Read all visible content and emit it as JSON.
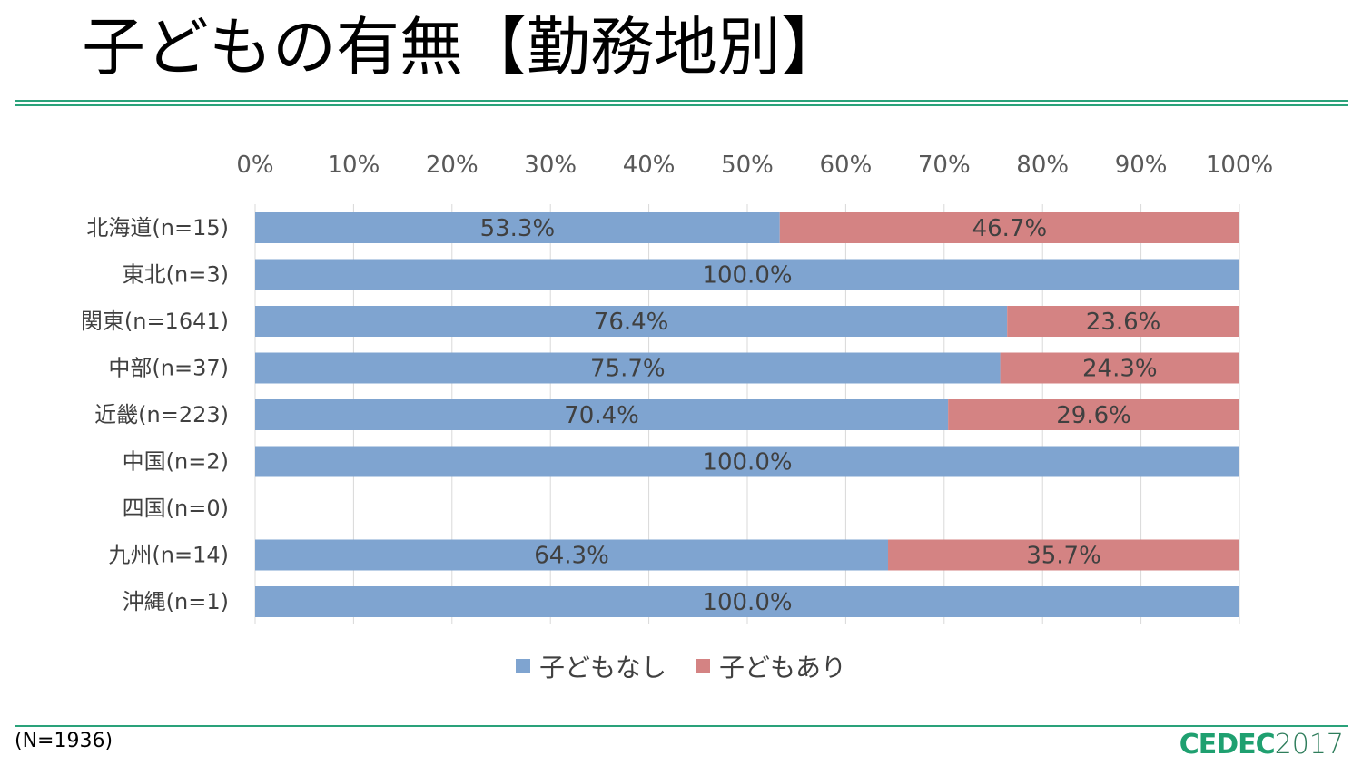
{
  "slide": {
    "title": "子どもの有無【勤務地別】",
    "footnote": "(N=1936)",
    "logo_text": "CEDEC",
    "logo_year": "2017"
  },
  "colors": {
    "rule": "#2AA27A",
    "no_children": "#7FA4D0",
    "has_children": "#D48383",
    "gridline": "#D9D9D9",
    "logo_cedec": "#1FA070",
    "logo_year": "#2E7D5B"
  },
  "chart_data": {
    "type": "bar",
    "orientation": "horizontal",
    "stacked": true,
    "percent": true,
    "title": "",
    "xlim": [
      0,
      100
    ],
    "xticks": [
      "0%",
      "10%",
      "20%",
      "30%",
      "40%",
      "50%",
      "60%",
      "70%",
      "80%",
      "90%",
      "100%"
    ],
    "grid": "vertical",
    "legend_position": "bottom-center",
    "categories": [
      "北海道(n=15)",
      "東北(n=3)",
      "関東(n=1641)",
      "中部(n=37)",
      "近畿(n=223)",
      "中国(n=2)",
      "四国(n=0)",
      "九州(n=14)",
      "沖縄(n=1)"
    ],
    "series": [
      {
        "name": "子どもなし",
        "values": [
          53.3,
          100.0,
          76.4,
          75.7,
          70.4,
          100.0,
          null,
          64.3,
          100.0
        ],
        "labels": [
          "53.3%",
          "100.0%",
          "76.4%",
          "75.7%",
          "70.4%",
          "100.0%",
          "",
          "64.3%",
          "100.0%"
        ]
      },
      {
        "name": "子どもあり",
        "values": [
          46.7,
          0.0,
          23.6,
          24.3,
          29.6,
          0.0,
          null,
          35.7,
          0.0
        ],
        "labels": [
          "46.7%",
          "",
          "23.6%",
          "24.3%",
          "29.6%",
          "",
          "",
          "35.7%",
          ""
        ]
      }
    ]
  }
}
